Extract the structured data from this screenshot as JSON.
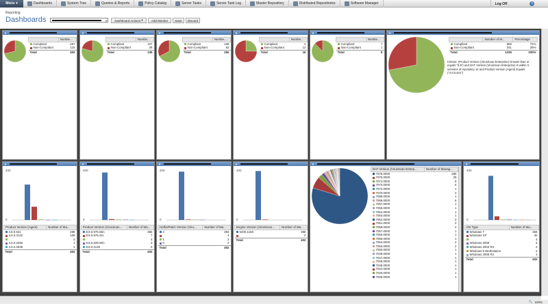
{
  "topbar": {
    "menu_label": "Menu",
    "items": [
      {
        "label": "Dashboards",
        "icon": "dashboard-icon"
      },
      {
        "label": "System Tree",
        "icon": "system-tree-icon"
      },
      {
        "label": "Queries & Reports",
        "icon": "queries-icon"
      },
      {
        "label": "Policy Catalog",
        "icon": "policy-icon"
      },
      {
        "label": "Server Tasks",
        "icon": "server-tasks-icon"
      },
      {
        "label": "Server Task Log",
        "icon": "task-log-icon"
      },
      {
        "label": "Master Repository",
        "icon": "repository-icon"
      },
      {
        "label": "Distributed Repositories",
        "icon": "distributed-icon"
      },
      {
        "label": "Software Manager",
        "icon": "software-icon"
      }
    ],
    "logoff": "Log Off",
    "help": "?"
  },
  "page": {
    "breadcrumb": "Reporting",
    "title": "Dashboards"
  },
  "toolbar": {
    "actions": "Dashboard Actions",
    "add_monitor": "Add Monitor",
    "save": "Save",
    "discard": "Discard"
  },
  "colors": {
    "compliant": "#93b55a",
    "noncompliant": "#b5413f",
    "blue": "#4a76ad",
    "header": "#5f88bb"
  },
  "top_panels": [
    {
      "header": "Numbe...",
      "rows": [
        {
          "label": "Compliant",
          "value": "287"
        },
        {
          "label": "Non-Compliant",
          "value": "115"
        }
      ],
      "total_label": "Total",
      "total": "402",
      "share": 0.714
    },
    {
      "header": "Numbe...",
      "rows": [
        {
          "label": "Compliant",
          "value": "107"
        },
        {
          "label": "Non-Compliant",
          "value": "28"
        }
      ],
      "total_label": "Total",
      "total": "135",
      "share": 0.793
    },
    {
      "header": "Numbe...",
      "rows": [
        {
          "label": "Compliant",
          "value": "168"
        },
        {
          "label": "Non-Compliant",
          "value": "82"
        }
      ],
      "total_label": "Total",
      "total": "250",
      "share": 0.672
    },
    {
      "header": "Numbe...",
      "rows": [
        {
          "label": "Compliant",
          "value": "4"
        },
        {
          "label": "Non-Compliant",
          "value": "12"
        }
      ],
      "total_label": "Total",
      "total": "16",
      "share": 0.25
    },
    {
      "header": "Numbe...",
      "rows": [
        {
          "label": "Compliant",
          "value": "7"
        },
        {
          "label": "Non-Compliant",
          "value": "1"
        }
      ],
      "total_label": "Total",
      "total": "8",
      "share": 0.875
    }
  ],
  "big_pie_panel": {
    "headers": [
      "Number of M...",
      "Percentage"
    ],
    "rows": [
      {
        "label": "Compliant",
        "value": "885",
        "pct": "72%"
      },
      {
        "label": "Non-Compliant",
        "value": "341",
        "pct": "28%"
      }
    ],
    "total_label": "Total",
    "total": "1226",
    "total_pct": "100%",
    "criteria": "Criteria: (Product Version (VirusScan Enterprise) Greater than or equals \"8.8\") and DAT Version (VirusScan Enterprise) Is within X versions of repository 14 and Product Version (Agent) Equals (\"4.8.0.641\")",
    "share": 0.72
  },
  "bar_panels": [
    {
      "ymax_label": "400",
      "y0_label": "0",
      "ymax": 400,
      "col1": "Product Version (Agent)",
      "col2": "Number of Ma...",
      "rows": [
        {
          "label": "4.8.0.641",
          "value": "288"
        },
        {
          "label": "4.6.0.3122",
          "value": "108"
        },
        {
          "label": "",
          "value": "4"
        },
        {
          "label": "4.6.0.2292",
          "value": "1"
        },
        {
          "label": "4.6.0.2935",
          "value": "1"
        }
      ],
      "total_label": "Total",
      "total": "402"
    },
    {
      "ymax_label": "400",
      "y0_label": "0",
      "ymax": 400,
      "col1": "Product Version (VirusScan...",
      "col2": "Number of Ma...",
      "rows": [
        {
          "label": "8.8.0.975.Win",
          "value": "386"
        },
        {
          "label": "8.8.0.975.Srv",
          "value": "7"
        },
        {
          "label": "",
          "value": "4"
        },
        {
          "label": "8.8.0.849.Win",
          "value": "3"
        },
        {
          "label": "8.8.0.1128",
          "value": "2"
        }
      ],
      "total_label": "Total",
      "total": "402"
    },
    {
      "ymax_label": "400",
      "y0_label": "0",
      "ymax": 400,
      "col1": "Hotfix/Patch Version (Viru...",
      "col2": "Number of Ma...",
      "rows": [
        {
          "label": "2",
          "value": "393"
        },
        {
          "label": "",
          "value": "4"
        },
        {
          "label": "1",
          "value": "3"
        },
        {
          "label": "0",
          "value": "2"
        }
      ],
      "total_label": "Total",
      "total": "402"
    },
    {
      "ymax_label": "400",
      "y0_label": "0",
      "ymax": 400,
      "col1": "Engine Version (VirusScan...",
      "col2": "Number of Ma...",
      "rows": [
        {
          "label": "5400.1158",
          "value": "398"
        },
        {
          "label": "",
          "value": "4"
        }
      ],
      "total_label": "Total",
      "total": "402"
    }
  ],
  "dat_panel": {
    "col1": "DAT Version (VirusScan Enterp...",
    "col2": "Number of Manag...",
    "rows": [
      {
        "label": "7076.0000",
        "value": "295"
      },
      {
        "label": "7075.0000",
        "value": "25"
      },
      {
        "label": "7074.0000",
        "value": "9"
      },
      {
        "label": "7073.0000",
        "value": "6"
      },
      {
        "label": "7072.0000",
        "value": "1"
      },
      {
        "label": "7070.0000",
        "value": "2"
      },
      {
        "label": "7069.0000",
        "value": "1"
      },
      {
        "label": "7068.0000",
        "value": "6"
      },
      {
        "label": "7067.0000",
        "value": "1"
      },
      {
        "label": "7066.0000",
        "value": "1"
      },
      {
        "label": "7064.0000",
        "value": "1"
      },
      {
        "label": "7063.0000",
        "value": "1"
      },
      {
        "label": "7062.0000",
        "value": "2"
      },
      {
        "label": "7061.0000",
        "value": "2"
      },
      {
        "label": "7059.0000",
        "value": "2"
      },
      {
        "label": "7057.0000",
        "value": "1"
      },
      {
        "label": "7056.0000",
        "value": "1"
      },
      {
        "label": "7055.0000",
        "value": "1"
      },
      {
        "label": "7054.0000",
        "value": "2"
      },
      {
        "label": "7053.0000",
        "value": "2"
      },
      {
        "label": "7050.0000",
        "value": "1"
      },
      {
        "label": "7049.0000",
        "value": "1"
      },
      {
        "label": "7047.0000",
        "value": "1"
      },
      {
        "label": "7046.0000",
        "value": "1"
      },
      {
        "label": "7045.0000",
        "value": "1"
      },
      {
        "label": "7042.0000",
        "value": "1"
      },
      {
        "label": "7040.0000",
        "value": "1"
      },
      {
        "label": "7036.0000",
        "value": "1"
      }
    ]
  },
  "os_panel": {
    "ymax_label": "400",
    "y0_label": "0",
    "ymax": 400,
    "col1": "OS Type",
    "col2": "Number of Ma...",
    "rows": [
      {
        "label": "Windows 7",
        "value": "359"
      },
      {
        "label": "Windows XP",
        "value": "30"
      },
      {
        "label": "",
        "value": "4"
      },
      {
        "label": "Windows 2008",
        "value": "4"
      },
      {
        "label": "Windows 2003 R2",
        "value": "2"
      },
      {
        "label": "Windows 8 Workstation",
        "value": "2"
      },
      {
        "label": "Windows 2008 R2",
        "value": "1"
      }
    ],
    "total_label": "Total",
    "total": "402"
  },
  "status": {
    "zoom": "100%"
  }
}
